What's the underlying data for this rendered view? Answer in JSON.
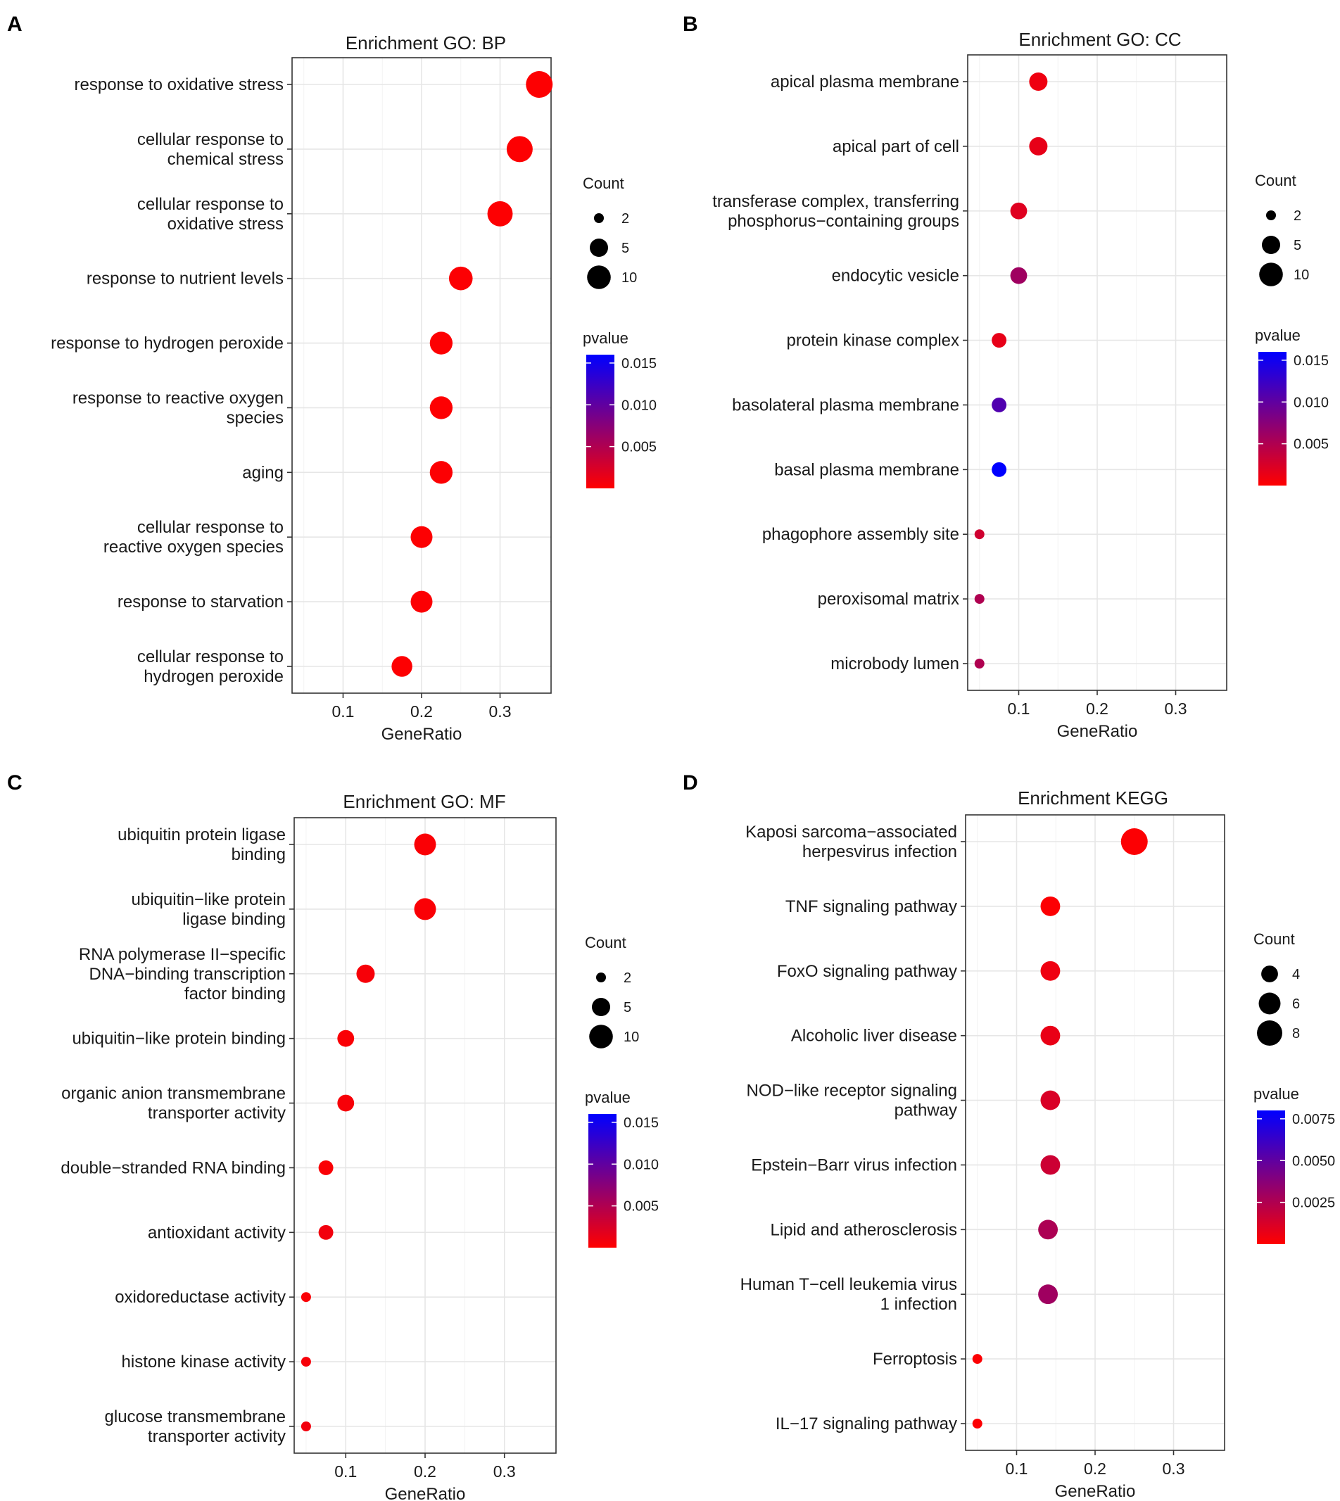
{
  "colors": {
    "low": "#ff0000",
    "high": "#0000ff",
    "grid": "#e6e6e6",
    "frame": "#333333"
  },
  "chart_data": [
    {
      "type": "scatter",
      "panel_label": "A",
      "title": "Enrichment GO: BP",
      "xlabel": "GeneRatio",
      "xlim": [
        0.035,
        0.365
      ],
      "xticks": [
        "0.1",
        "0.2",
        "0.3"
      ],
      "xtick_values": [
        0.1,
        0.2,
        0.3
      ],
      "categories": [
        {
          "lines": [
            "response to oxidative stress"
          ],
          "gene_ratio": 0.35,
          "count": 14,
          "pvalue": 0.0001
        },
        {
          "lines": [
            "cellular response to",
            "chemical stress"
          ],
          "gene_ratio": 0.325,
          "count": 13,
          "pvalue": 0.0001
        },
        {
          "lines": [
            "cellular response to",
            "oxidative stress"
          ],
          "gene_ratio": 0.3,
          "count": 12,
          "pvalue": 0.0001
        },
        {
          "lines": [
            "response to nutrient levels"
          ],
          "gene_ratio": 0.25,
          "count": 10,
          "pvalue": 0.0002
        },
        {
          "lines": [
            "response to hydrogen peroxide"
          ],
          "gene_ratio": 0.225,
          "count": 9,
          "pvalue": 0.0001
        },
        {
          "lines": [
            "response to reactive oxygen",
            "species"
          ],
          "gene_ratio": 0.225,
          "count": 9,
          "pvalue": 0.0001
        },
        {
          "lines": [
            "aging"
          ],
          "gene_ratio": 0.225,
          "count": 9,
          "pvalue": 0.0002
        },
        {
          "lines": [
            "cellular response to",
            "reactive oxygen species"
          ],
          "gene_ratio": 0.2,
          "count": 8,
          "pvalue": 0.0001
        },
        {
          "lines": [
            "response to starvation"
          ],
          "gene_ratio": 0.2,
          "count": 8,
          "pvalue": 0.0002
        },
        {
          "lines": [
            "cellular response to",
            "hydrogen peroxide"
          ],
          "gene_ratio": 0.175,
          "count": 7,
          "pvalue": 0.0001
        }
      ],
      "size_legend": {
        "title": "Count",
        "labels": [
          "2",
          "5",
          "10"
        ],
        "values": [
          2,
          5,
          10
        ]
      },
      "color_legend": {
        "title": "pvalue",
        "labels": [
          "0.015",
          "0.010",
          "0.005"
        ],
        "values": [
          0.015,
          0.01,
          0.005
        ],
        "range": [
          0.0,
          0.016
        ]
      },
      "count_range": [
        2,
        14
      ]
    },
    {
      "type": "scatter",
      "panel_label": "B",
      "title": "Enrichment GO: CC",
      "xlabel": "GeneRatio",
      "xlim": [
        0.035,
        0.365
      ],
      "xticks": [
        "0.1",
        "0.2",
        "0.3"
      ],
      "xtick_values": [
        0.1,
        0.2,
        0.3
      ],
      "categories": [
        {
          "lines": [
            "apical plasma membrane"
          ],
          "gene_ratio": 0.125,
          "count": 5,
          "pvalue": 0.001
        },
        {
          "lines": [
            "apical part of cell"
          ],
          "gene_ratio": 0.125,
          "count": 5,
          "pvalue": 0.0015
        },
        {
          "lines": [
            "transferase complex, transferring",
            "phosphorus−containing groups"
          ],
          "gene_ratio": 0.1,
          "count": 4,
          "pvalue": 0.002
        },
        {
          "lines": [
            "endocytic vesicle"
          ],
          "gene_ratio": 0.1,
          "count": 4,
          "pvalue": 0.006
        },
        {
          "lines": [
            "protein kinase complex"
          ],
          "gene_ratio": 0.075,
          "count": 3,
          "pvalue": 0.0015
        },
        {
          "lines": [
            "basolateral plasma membrane"
          ],
          "gene_ratio": 0.075,
          "count": 3,
          "pvalue": 0.011
        },
        {
          "lines": [
            "basal plasma membrane"
          ],
          "gene_ratio": 0.075,
          "count": 3,
          "pvalue": 0.016
        },
        {
          "lines": [
            "phagophore assembly site"
          ],
          "gene_ratio": 0.05,
          "count": 2,
          "pvalue": 0.003
        },
        {
          "lines": [
            "peroxisomal matrix"
          ],
          "gene_ratio": 0.05,
          "count": 2,
          "pvalue": 0.005
        },
        {
          "lines": [
            "microbody lumen"
          ],
          "gene_ratio": 0.05,
          "count": 2,
          "pvalue": 0.005
        }
      ],
      "size_legend": {
        "title": "Count",
        "labels": [
          "2",
          "5",
          "10"
        ],
        "values": [
          2,
          5,
          10
        ]
      },
      "color_legend": {
        "title": "pvalue",
        "labels": [
          "0.015",
          "0.010",
          "0.005"
        ],
        "values": [
          0.015,
          0.01,
          0.005
        ],
        "range": [
          0.0,
          0.016
        ]
      },
      "count_range": [
        2,
        14
      ]
    },
    {
      "type": "scatter",
      "panel_label": "C",
      "title": "Enrichment GO: MF",
      "xlabel": "GeneRatio",
      "xlim": [
        0.035,
        0.365
      ],
      "xticks": [
        "0.1",
        "0.2",
        "0.3"
      ],
      "xtick_values": [
        0.1,
        0.2,
        0.3
      ],
      "categories": [
        {
          "lines": [
            "ubiquitin protein ligase",
            "binding"
          ],
          "gene_ratio": 0.2,
          "count": 8,
          "pvalue": 0.0003
        },
        {
          "lines": [
            "ubiquitin−like protein",
            "ligase binding"
          ],
          "gene_ratio": 0.2,
          "count": 8,
          "pvalue": 0.0003
        },
        {
          "lines": [
            "RNA polymerase II−specific",
            "DNA−binding transcription",
            "factor binding"
          ],
          "gene_ratio": 0.125,
          "count": 5,
          "pvalue": 0.0005
        },
        {
          "lines": [
            "ubiquitin−like protein binding"
          ],
          "gene_ratio": 0.1,
          "count": 4,
          "pvalue": 0.0003
        },
        {
          "lines": [
            "organic anion transmembrane",
            "transporter activity"
          ],
          "gene_ratio": 0.1,
          "count": 4,
          "pvalue": 0.0005
        },
        {
          "lines": [
            "double−stranded RNA binding"
          ],
          "gene_ratio": 0.075,
          "count": 3,
          "pvalue": 0.0003
        },
        {
          "lines": [
            "antioxidant activity"
          ],
          "gene_ratio": 0.075,
          "count": 3,
          "pvalue": 0.0008
        },
        {
          "lines": [
            "oxidoreductase activity"
          ],
          "gene_ratio": 0.05,
          "count": 2,
          "pvalue": 0.0003
        },
        {
          "lines": [
            "histone kinase activity"
          ],
          "gene_ratio": 0.05,
          "count": 2,
          "pvalue": 0.0005
        },
        {
          "lines": [
            "glucose transmembrane",
            "transporter activity"
          ],
          "gene_ratio": 0.05,
          "count": 2,
          "pvalue": 0.0008
        }
      ],
      "size_legend": {
        "title": "Count",
        "labels": [
          "2",
          "5",
          "10"
        ],
        "values": [
          2,
          5,
          10
        ]
      },
      "color_legend": {
        "title": "pvalue",
        "labels": [
          "0.015",
          "0.010",
          "0.005"
        ],
        "values": [
          0.015,
          0.01,
          0.005
        ],
        "range": [
          0.0,
          0.016
        ]
      },
      "count_range": [
        2,
        14
      ]
    },
    {
      "type": "scatter",
      "panel_label": "D",
      "title": "Enrichment KEGG",
      "xlabel": "GeneRatio",
      "xlim": [
        0.035,
        0.365
      ],
      "xticks": [
        "0.1",
        "0.2",
        "0.3"
      ],
      "xtick_values": [
        0.1,
        0.2,
        0.3
      ],
      "categories": [
        {
          "lines": [
            "Kaposi sarcoma−associated",
            "herpesvirus infection"
          ],
          "gene_ratio": 0.25,
          "count": 9,
          "pvalue": 0.0001
        },
        {
          "lines": [
            "TNF signaling pathway"
          ],
          "gene_ratio": 0.143,
          "count": 5,
          "pvalue": 0.0001
        },
        {
          "lines": [
            "FoxO signaling pathway"
          ],
          "gene_ratio": 0.143,
          "count": 5,
          "pvalue": 0.0005
        },
        {
          "lines": [
            "Alcoholic liver disease"
          ],
          "gene_ratio": 0.143,
          "count": 5,
          "pvalue": 0.0007
        },
        {
          "lines": [
            "NOD−like receptor signaling",
            "pathway"
          ],
          "gene_ratio": 0.143,
          "count": 5,
          "pvalue": 0.0012
        },
        {
          "lines": [
            "Epstein−Barr virus infection"
          ],
          "gene_ratio": 0.143,
          "count": 5,
          "pvalue": 0.0016
        },
        {
          "lines": [
            "Lipid and atherosclerosis"
          ],
          "gene_ratio": 0.14,
          "count": 5,
          "pvalue": 0.0026
        },
        {
          "lines": [
            "Human T−cell leukemia virus",
            "1 infection"
          ],
          "gene_ratio": 0.14,
          "count": 5,
          "pvalue": 0.003
        },
        {
          "lines": [
            "Ferroptosis"
          ],
          "gene_ratio": 0.05,
          "count": 3,
          "pvalue": 0.0001
        },
        {
          "lines": [
            "IL−17 signaling pathway"
          ],
          "gene_ratio": 0.05,
          "count": 3,
          "pvalue": 0.0001
        }
      ],
      "size_legend": {
        "title": "Count",
        "labels": [
          "4",
          "6",
          "8"
        ],
        "values": [
          4,
          6,
          8
        ]
      },
      "color_legend": {
        "title": "pvalue",
        "labels": [
          "0.0075",
          "0.0050",
          "0.0025"
        ],
        "values": [
          0.0075,
          0.005,
          0.0025
        ],
        "range": [
          0.0,
          0.008
        ]
      },
      "count_range": [
        3,
        9
      ]
    }
  ]
}
